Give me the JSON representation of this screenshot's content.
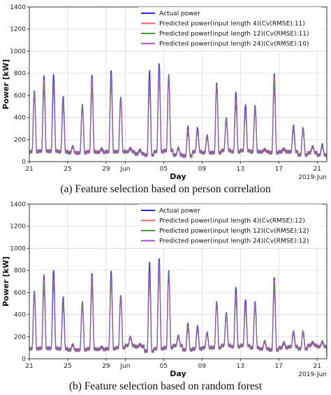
{
  "captions": {
    "a": "(a) Feature selection based on person correlation",
    "b": "(b) Feature selection based on random forest"
  },
  "chart_data": [
    {
      "type": "line",
      "title": "",
      "xlabel": "Day",
      "ylabel": "Power [kW]",
      "ylim": [
        0,
        1400
      ],
      "yticks": [
        0,
        200,
        400,
        600,
        800,
        1000,
        1200,
        1400
      ],
      "xlim": [
        21,
        52
      ],
      "x_tick_positions": [
        21,
        25,
        29,
        31,
        35,
        39,
        43,
        47,
        51
      ],
      "x_tick_labels": [
        "21",
        "25",
        "29",
        "Jun",
        "05",
        "09",
        "13",
        "17",
        "21"
      ],
      "x_offset_label": "2019-Jun",
      "grid": true,
      "legend": "top-center",
      "x": [
        21,
        22,
        23,
        24,
        25,
        26,
        27,
        28,
        29,
        30,
        31,
        32,
        33,
        34,
        35,
        36,
        37,
        38,
        39,
        40,
        41,
        42,
        43,
        44,
        45,
        46,
        47,
        48,
        49,
        50,
        51,
        52
      ],
      "daily_peak": [
        650,
        780,
        800,
        590,
        140,
        520,
        790,
        120,
        830,
        590,
        120,
        110,
        830,
        900,
        790,
        130,
        320,
        310,
        240,
        720,
        400,
        630,
        520,
        510,
        110,
        800,
        120,
        330,
        310,
        140,
        160,
        20
      ],
      "daily_base": [
        90,
        95,
        95,
        90,
        80,
        80,
        90,
        85,
        90,
        90,
        90,
        70,
        60,
        90,
        100,
        60,
        50,
        90,
        80,
        80,
        100,
        90,
        100,
        90,
        90,
        80,
        90,
        90,
        60,
        80,
        60,
        20
      ],
      "series": [
        {
          "name": "Actual power",
          "color": "#2a2ae0"
        },
        {
          "name": "Predicted power(input length 4)(Cv(RMSE):11)",
          "color": "#f06262"
        },
        {
          "name": "Predicted power(input length 12)(Cv(RMSE):11)",
          "color": "#3ea23e"
        },
        {
          "name": "Predicted power(input length 24)(Cv(RMSE):10)",
          "color": "#a24ec2"
        }
      ]
    },
    {
      "type": "line",
      "title": "",
      "xlabel": "Day",
      "ylabel": "Power [kW]",
      "ylim": [
        0,
        1400
      ],
      "yticks": [
        0,
        200,
        400,
        600,
        800,
        1000,
        1200,
        1400
      ],
      "xlim": [
        21,
        52
      ],
      "x_tick_positions": [
        21,
        25,
        29,
        31,
        35,
        39,
        43,
        47,
        51
      ],
      "x_tick_labels": [
        "21",
        "25",
        "29",
        "Jun",
        "05",
        "09",
        "13",
        "17",
        "21"
      ],
      "x_offset_label": "2019-Jun",
      "grid": true,
      "legend": "top-center",
      "x": [
        21,
        22,
        23,
        24,
        25,
        26,
        27,
        28,
        29,
        30,
        31,
        32,
        33,
        34,
        35,
        36,
        37,
        38,
        39,
        40,
        41,
        42,
        43,
        44,
        45,
        46,
        47,
        48,
        49,
        50,
        51,
        52
      ],
      "daily_peak": [
        620,
        760,
        810,
        560,
        130,
        520,
        780,
        110,
        800,
        580,
        200,
        130,
        880,
        920,
        800,
        210,
        320,
        300,
        240,
        520,
        420,
        650,
        540,
        520,
        160,
        740,
        150,
        250,
        250,
        150,
        160,
        20
      ],
      "daily_base": [
        90,
        95,
        95,
        90,
        80,
        80,
        90,
        85,
        90,
        100,
        120,
        110,
        70,
        90,
        100,
        120,
        80,
        90,
        100,
        100,
        120,
        110,
        120,
        100,
        90,
        80,
        100,
        110,
        90,
        120,
        110,
        30
      ],
      "series": [
        {
          "name": "Actual power",
          "color": "#2a2ae0"
        },
        {
          "name": "Predicted power(input length 4)(Cv(RMSE):12)",
          "color": "#f06262"
        },
        {
          "name": "Predicted power(input length 12)(Cv(RMSE):12)",
          "color": "#3ea23e"
        },
        {
          "name": "Predicted power(input length 24)(Cv(RMSE):12)",
          "color": "#a24ec2"
        }
      ]
    }
  ]
}
